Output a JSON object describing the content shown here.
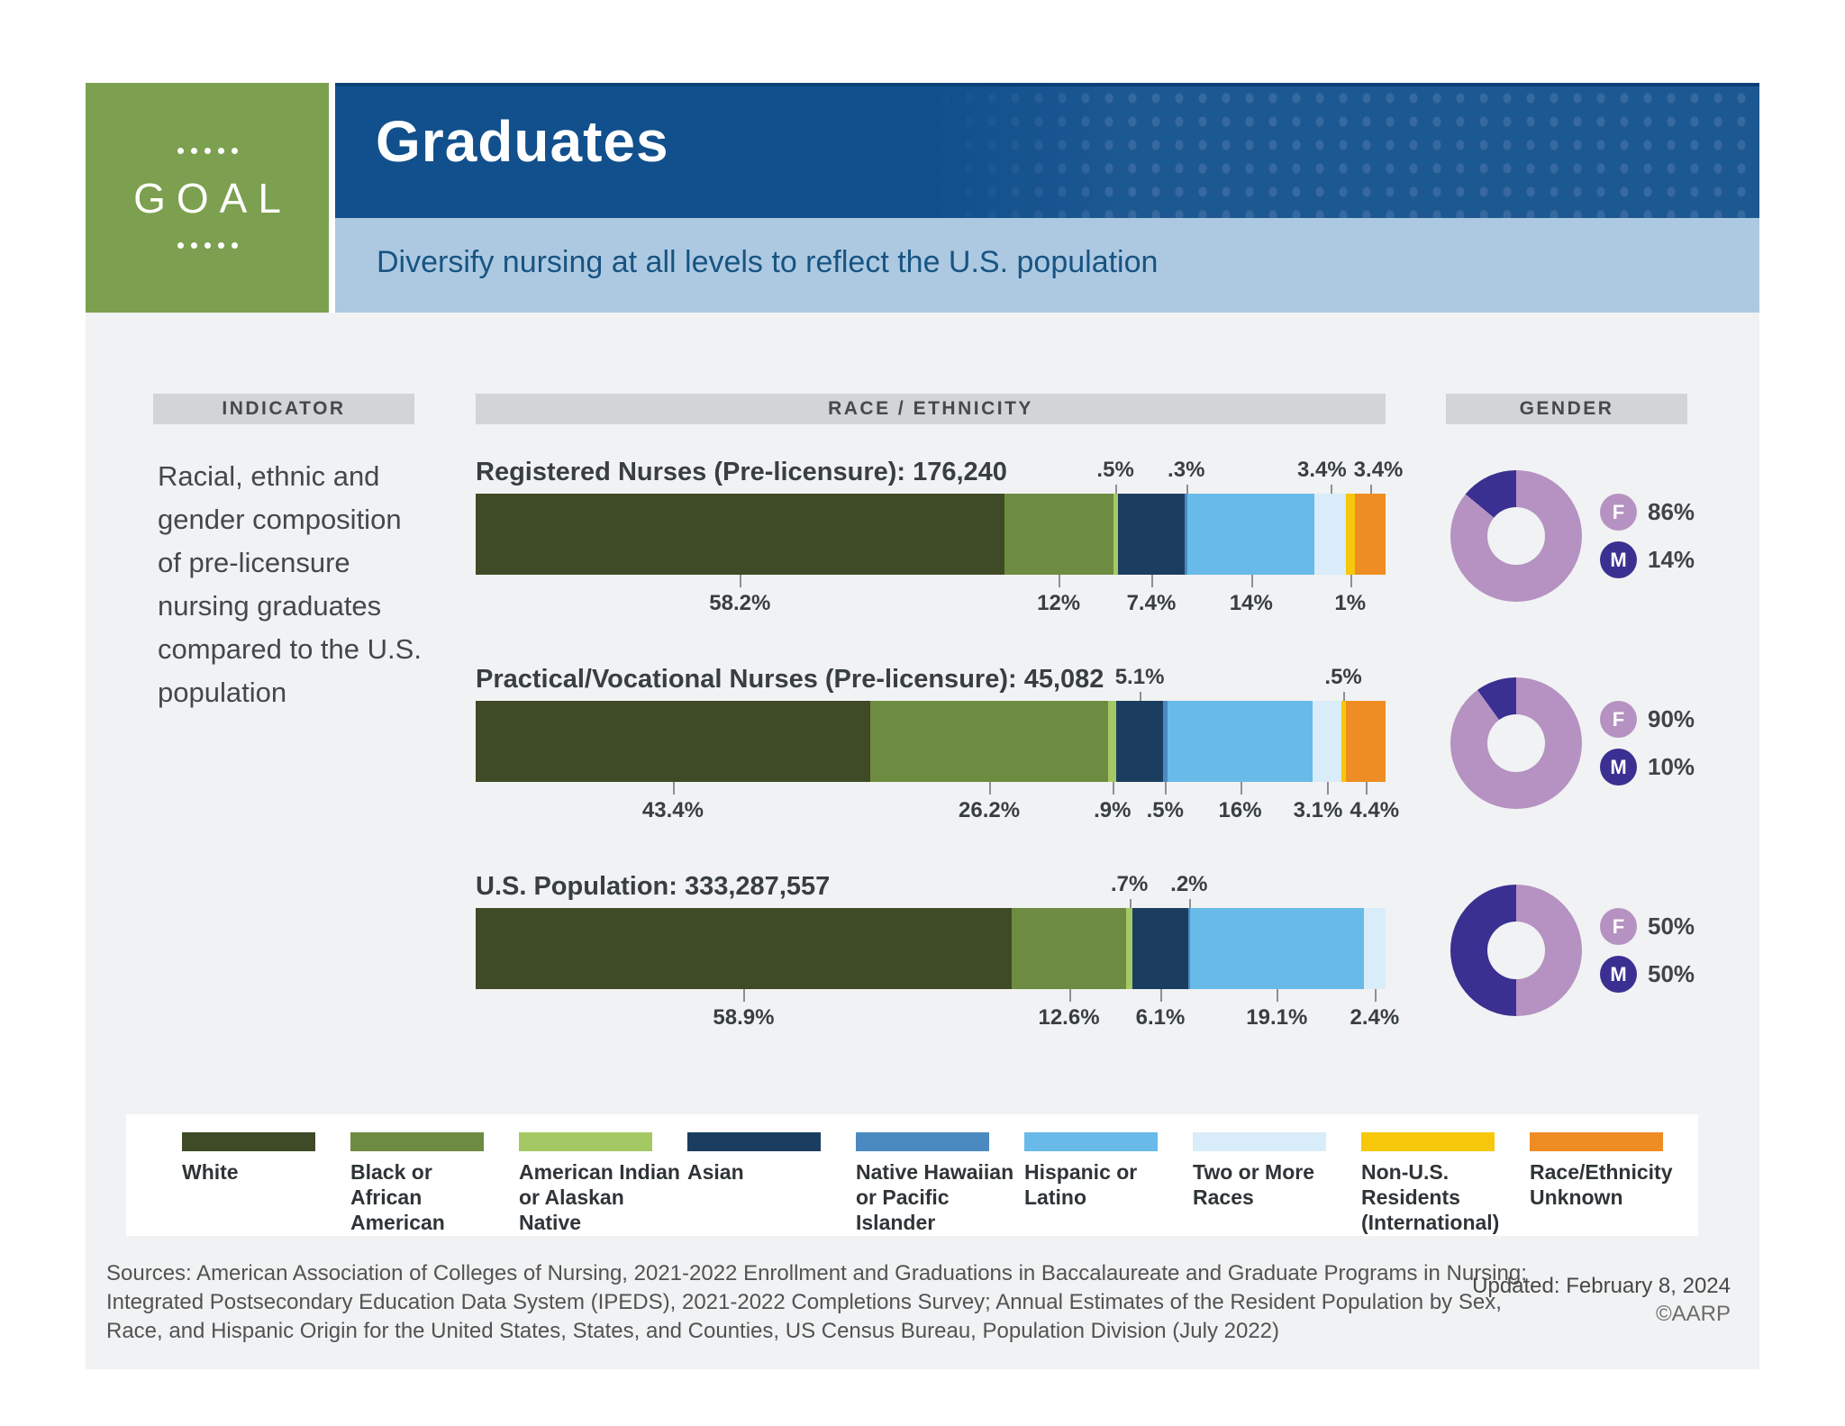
{
  "header": {
    "goal_label": "GOAL",
    "title": "Graduates",
    "subtitle": "Diversify nursing at all levels to reflect the U.S. population"
  },
  "columns": {
    "indicator": "INDICATOR",
    "race_ethnicity": "RACE / ETHNICITY",
    "gender": "GENDER"
  },
  "indicator_text": "Racial, ethnic and gender composition of pre-licensure nursing graduates compared to the U.S. population",
  "colors": {
    "segment_colors": [
      "#3f4a26",
      "#6e8c41",
      "#a4c964",
      "#1b3e60",
      "#4a8ac0",
      "#68bae9",
      "#d9ecf9",
      "#f6c70a",
      "#ee8d23"
    ],
    "female": "#b592c1",
    "male": "#3a3092",
    "header_green": "#7ca04f",
    "header_blue": "#11508c",
    "header_light_blue": "#adc9e2",
    "subtitle_text": "#175481",
    "content_bg": "#f1f2f3",
    "column_header_bg": "#d3d4d5"
  },
  "chart_data": {
    "type": "bar",
    "note": "Three horizontal 100% stacked bars (race/ethnicity) paired with three gender donut charts",
    "categories": [
      "White",
      "Black or African American",
      "American Indian or Alaskan Native",
      "Asian",
      "Native Hawaiian or Pacific Islander",
      "Hispanic or Latino",
      "Two or More Races",
      "Non-U.S. Residents (International)",
      "Race/Ethnicity Unknown"
    ],
    "bars": [
      {
        "title": "Registered Nurses (Pre-licensure): 176,240",
        "values": [
          58.2,
          12,
          0.5,
          7.4,
          0.3,
          14,
          3.4,
          1,
          3.4
        ],
        "value_labels": [
          "58.2%",
          "12%",
          ".5%",
          "7.4%",
          ".3%",
          "14%",
          "3.4%",
          "1%",
          "3.4%"
        ],
        "label_side": [
          "below",
          "below",
          "above",
          "below",
          "above",
          "below",
          "above",
          "below",
          "above"
        ]
      },
      {
        "title": "Practical/Vocational Nurses (Pre-licensure): 45,082",
        "values": [
          43.4,
          26.2,
          0.9,
          5.1,
          0.5,
          16,
          3.1,
          0.5,
          4.4
        ],
        "value_labels": [
          "43.4%",
          "26.2%",
          ".9%",
          "5.1%",
          ".5%",
          "16%",
          "3.1%",
          ".5%",
          "4.4%"
        ],
        "label_side": [
          "below",
          "below",
          "below",
          "above",
          "below",
          "below",
          "below",
          "above",
          "below"
        ]
      },
      {
        "title": "U.S. Population: 333,287,557",
        "values": [
          58.9,
          12.6,
          0.7,
          6.1,
          0.2,
          19.1,
          2.4
        ],
        "value_labels": [
          "58.9%",
          "12.6%",
          ".7%",
          "6.1%",
          ".2%",
          "19.1%",
          "2.4%"
        ],
        "label_side": [
          "below",
          "below",
          "above",
          "below",
          "above",
          "below",
          "below"
        ]
      }
    ],
    "donuts": [
      {
        "id": "gender-registered-nurses",
        "type": "pie",
        "donut": true,
        "slices": [
          {
            "label": "F",
            "value": 86,
            "text": "86%"
          },
          {
            "label": "M",
            "value": 14,
            "text": "14%"
          }
        ]
      },
      {
        "id": "gender-practical-vocational-nurses",
        "type": "pie",
        "donut": true,
        "slices": [
          {
            "label": "F",
            "value": 90,
            "text": "90%"
          },
          {
            "label": "M",
            "value": 10,
            "text": "10%"
          }
        ]
      },
      {
        "id": "gender-us-population",
        "type": "pie",
        "donut": true,
        "slices": [
          {
            "label": "F",
            "value": 50,
            "text": "50%"
          },
          {
            "label": "M",
            "value": 50,
            "text": "50%"
          }
        ]
      }
    ]
  },
  "legend": [
    {
      "lines": [
        "White"
      ]
    },
    {
      "lines": [
        "Black or",
        "African American"
      ]
    },
    {
      "lines": [
        "American Indian",
        "or Alaskan Native"
      ]
    },
    {
      "lines": [
        "Asian"
      ]
    },
    {
      "lines": [
        "Native Hawaiian",
        "or Pacific Islander"
      ]
    },
    {
      "lines": [
        "Hispanic or",
        "Latino"
      ]
    },
    {
      "lines": [
        "Two or More",
        "Races"
      ]
    },
    {
      "lines": [
        "Non-U.S. Residents",
        "(International)"
      ]
    },
    {
      "lines": [
        "Race/Ethnicity",
        "Unknown"
      ]
    }
  ],
  "footer": {
    "sources_lines": [
      "Sources: American Association of Colleges of Nursing, 2021-2022 Enrollment and Graduations in Baccalaureate and Graduate Programs in Nursing;",
      "Integrated Postsecondary Education Data System (IPEDS), 2021-2022 Completions Survey; Annual Estimates of the Resident Population by Sex,",
      "Race, and Hispanic Origin for the United States, States, and Counties, US Census Bureau, Population Division (July 2022)"
    ],
    "updated": "Updated: February 8, 2024",
    "copyright": "©AARP"
  }
}
